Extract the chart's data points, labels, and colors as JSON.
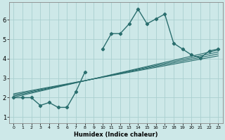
{
  "title": "",
  "xlabel": "Humidex (Indice chaleur)",
  "ylabel": "",
  "background_color": "#cde8e8",
  "grid_color": "#aacfcf",
  "line_color": "#2a6e6e",
  "xlim": [
    -0.5,
    23.5
  ],
  "ylim": [
    0.7,
    6.9
  ],
  "xticks": [
    0,
    1,
    2,
    3,
    4,
    5,
    6,
    7,
    8,
    9,
    10,
    11,
    12,
    13,
    14,
    15,
    16,
    17,
    18,
    19,
    20,
    21,
    22,
    23
  ],
  "yticks": [
    1,
    2,
    3,
    4,
    5,
    6
  ],
  "main_line_x": [
    0,
    1,
    2,
    3,
    4,
    5,
    6,
    7,
    8,
    9,
    10,
    11,
    12,
    13,
    14,
    15,
    16,
    17,
    18,
    19,
    20,
    21,
    22,
    23
  ],
  "main_line_y": [
    2.0,
    2.0,
    2.0,
    1.6,
    1.75,
    1.5,
    1.5,
    2.3,
    3.3,
    null,
    4.5,
    5.3,
    5.3,
    5.8,
    6.55,
    5.8,
    6.05,
    6.3,
    4.8,
    4.5,
    4.2,
    4.05,
    4.4,
    4.5
  ],
  "reg_lines": [
    {
      "x": [
        0,
        23
      ],
      "y": [
        2.02,
        4.45
      ]
    },
    {
      "x": [
        0,
        23
      ],
      "y": [
        2.08,
        4.35
      ]
    },
    {
      "x": [
        0,
        23
      ],
      "y": [
        2.14,
        4.25
      ]
    },
    {
      "x": [
        0,
        23
      ],
      "y": [
        2.2,
        4.15
      ]
    }
  ]
}
